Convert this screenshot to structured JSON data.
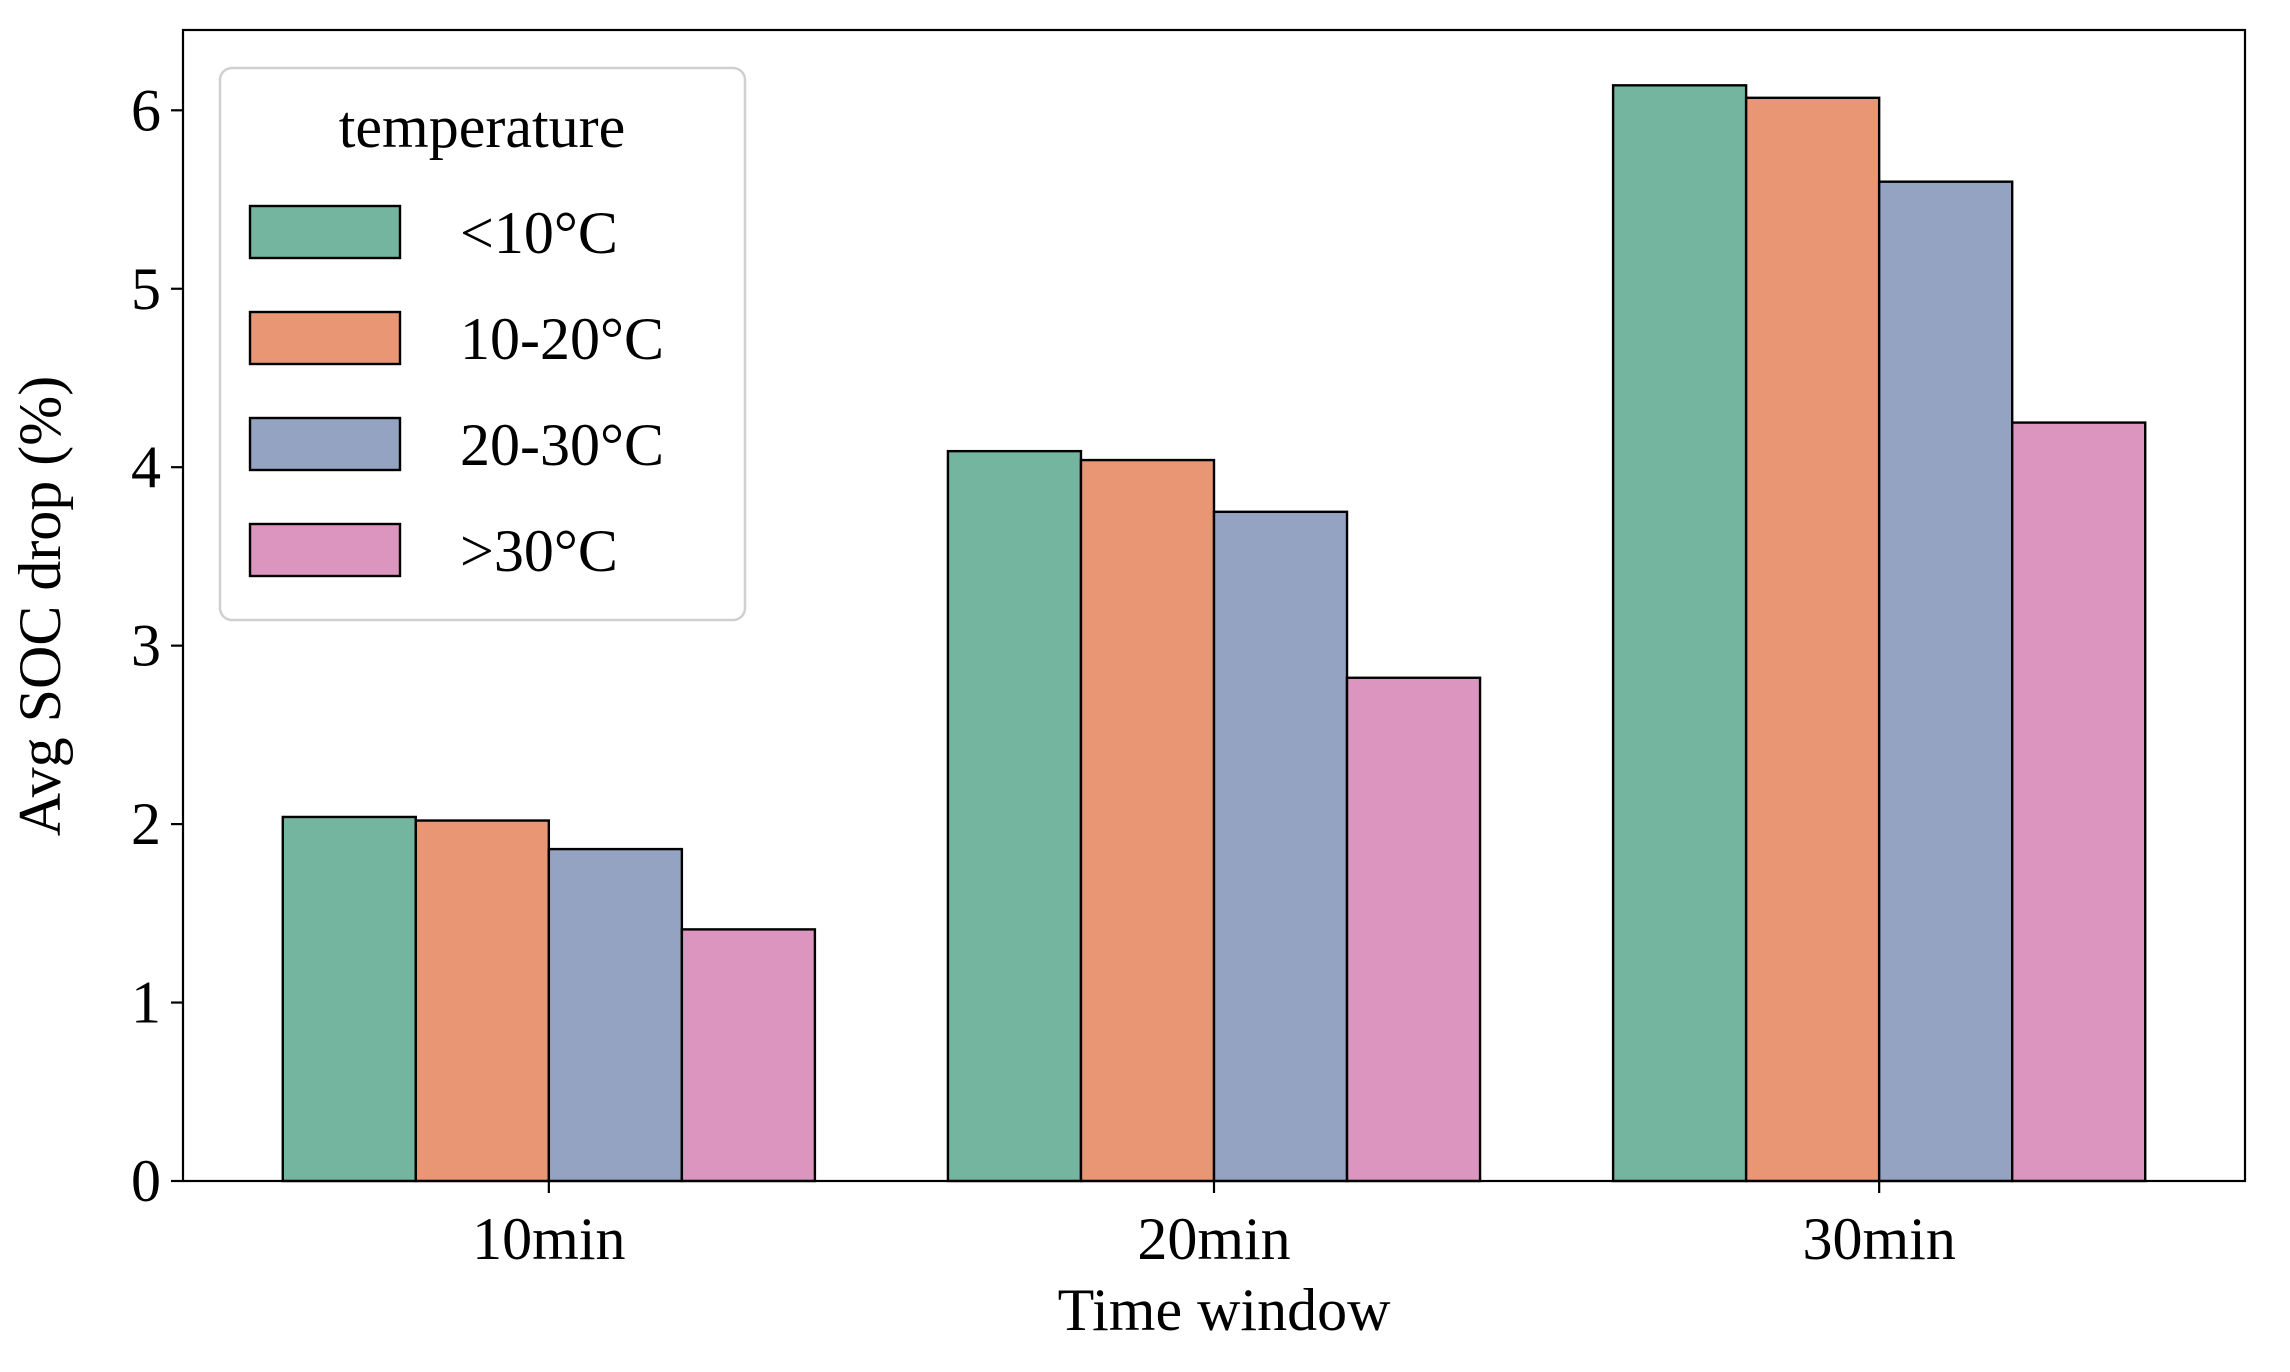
{
  "chart_data": {
    "type": "bar",
    "title": "",
    "xlabel": "Time window",
    "ylabel": "Avg SOC drop (%)",
    "categories": [
      "10min",
      "20min",
      "30min"
    ],
    "ylim": [
      0,
      6.45
    ],
    "yticks": [
      0,
      1,
      2,
      3,
      4,
      5,
      6
    ],
    "ytick_labels": [
      "0",
      "1",
      "2",
      "3",
      "4",
      "5",
      "6"
    ],
    "grid": false,
    "legend": {
      "title": "temperature",
      "placement": "top-left"
    },
    "series": [
      {
        "name": "<10°C",
        "color": "#74b5a0",
        "values": [
          2.04,
          4.09,
          6.14
        ]
      },
      {
        "name": "10-20°C",
        "color": "#e89674",
        "values": [
          2.02,
          4.04,
          6.07
        ]
      },
      {
        "name": "20-30°C",
        "color": "#94a3c1",
        "values": [
          1.86,
          3.75,
          5.6
        ]
      },
      {
        "name": ">30°C",
        "color": "#dc95bf",
        "values": [
          1.41,
          2.82,
          4.25
        ]
      }
    ]
  }
}
